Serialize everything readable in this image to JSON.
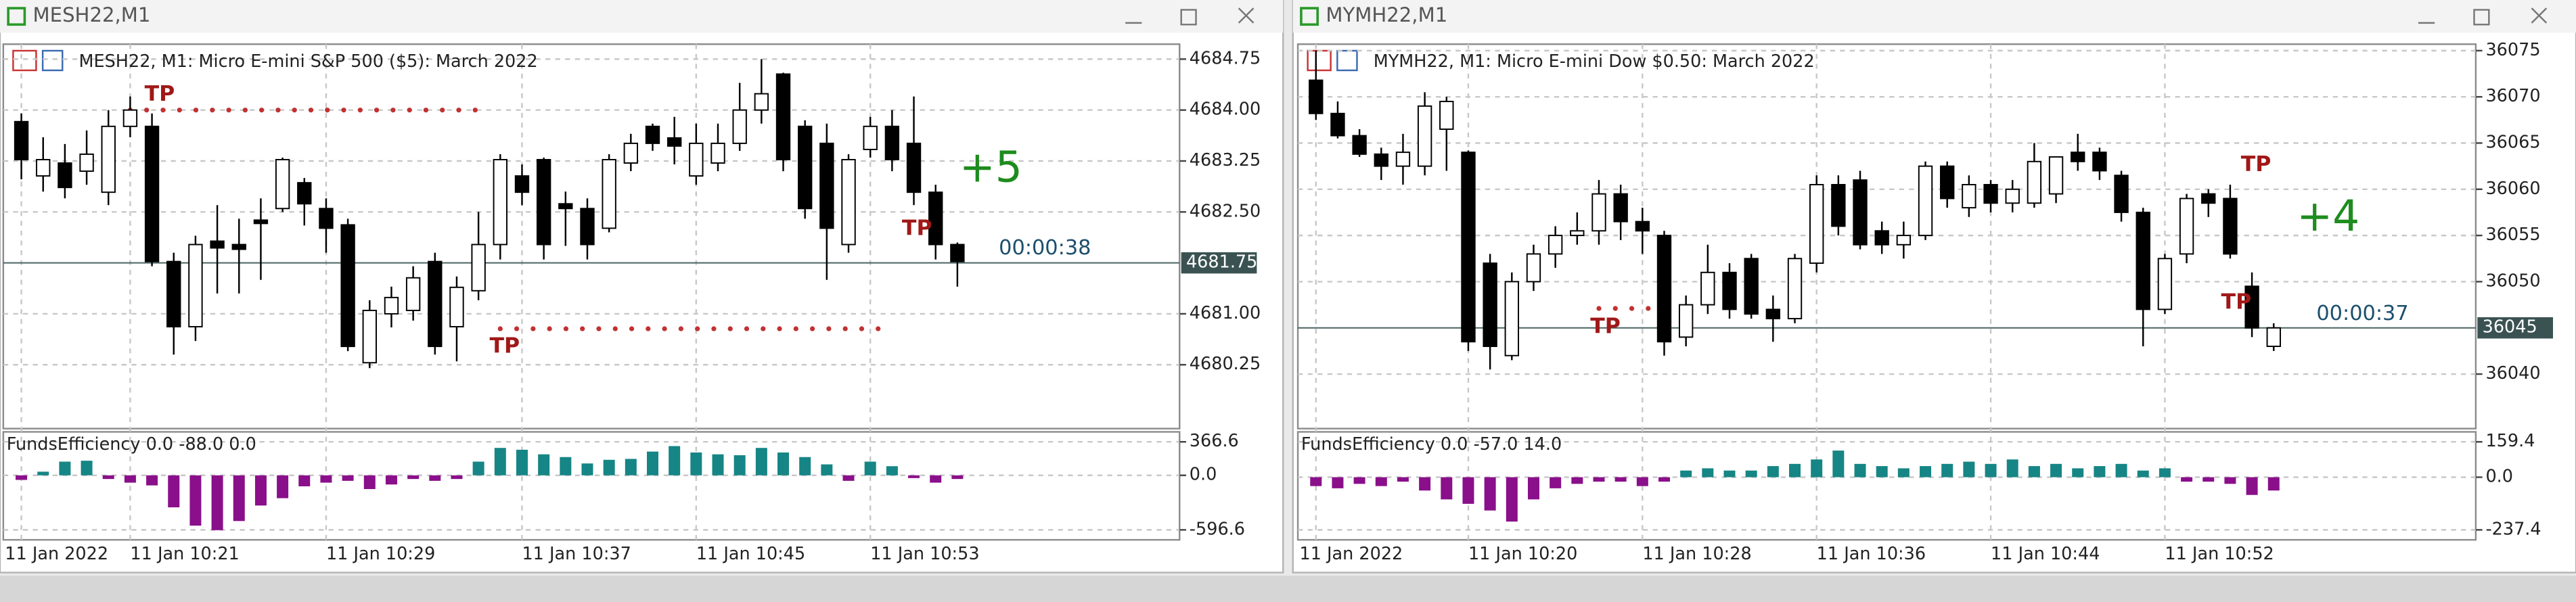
{
  "windows": [
    {
      "title": "MESH22,M1",
      "chart": {
        "type": "candlestick",
        "header": "MESH22, M1:  Micro E-mini S&P 500 ($5): March 2022",
        "categories": [
          "11 Jan 2022",
          null,
          null,
          null,
          null,
          "11 Jan 10:21",
          null,
          null,
          null,
          null,
          null,
          null,
          null,
          null,
          "11 Jan 10:29",
          null,
          null,
          null,
          null,
          null,
          null,
          null,
          null,
          "11 Jan 10:37",
          null,
          null,
          null,
          null,
          null,
          null,
          null,
          "11 Jan 10:45",
          null,
          null,
          null,
          null,
          null,
          null,
          null,
          "11 Jan 10:53",
          null,
          null,
          null,
          null
        ],
        "open": [
          4683.83,
          4683.03,
          4683.22,
          4683.1,
          4682.79,
          4683.76,
          4683.76,
          4681.77,
          4680.81,
          4682.07,
          4682.02,
          4682.38,
          4682.55,
          4682.93,
          4682.55,
          4682.31,
          4680.28,
          4681.0,
          4681.05,
          4681.77,
          4680.81,
          4681.34,
          4682.02,
          4683.03,
          4683.27,
          4682.62,
          4682.55,
          4682.26,
          4683.22,
          4683.76,
          4683.59,
          4683.03,
          4683.22,
          4683.51,
          4684.0,
          4684.53,
          4683.76,
          4683.51,
          4682.02,
          4683.42,
          4683.76,
          4683.51,
          4682.79,
          4682.02
        ],
        "high": [
          4683.95,
          4683.6,
          4683.5,
          4683.7,
          4684.0,
          4684.2,
          4683.95,
          4681.9,
          4682.15,
          4682.6,
          4682.4,
          4682.7,
          4683.3,
          4683.0,
          4682.7,
          4682.4,
          4681.2,
          4681.4,
          4681.7,
          4681.9,
          4681.55,
          4682.5,
          4683.35,
          4683.2,
          4683.3,
          4682.8,
          4682.7,
          4683.35,
          4683.65,
          4683.8,
          4683.9,
          4683.8,
          4683.8,
          4684.4,
          4684.75,
          4684.55,
          4683.85,
          4683.8,
          4683.35,
          4683.9,
          4684.0,
          4684.2,
          4682.9,
          4682.05
        ],
        "low": [
          4682.98,
          4682.8,
          4682.7,
          4682.9,
          4682.6,
          4683.6,
          4681.7,
          4680.4,
          4680.6,
          4681.3,
          4681.3,
          4681.5,
          4682.5,
          4682.3,
          4681.9,
          4680.45,
          4680.2,
          4680.8,
          4680.9,
          4680.4,
          4680.3,
          4681.2,
          4681.8,
          4682.6,
          4681.8,
          4682.0,
          4681.8,
          4682.2,
          4683.1,
          4683.4,
          4683.2,
          4682.9,
          4683.1,
          4683.4,
          4683.8,
          4683.1,
          4682.4,
          4681.5,
          4681.9,
          4683.3,
          4683.1,
          4682.6,
          4681.8,
          4681.4
        ],
        "close": [
          4683.27,
          4683.27,
          4682.86,
          4683.35,
          4683.76,
          4684.0,
          4681.77,
          4680.81,
          4682.02,
          4681.97,
          4681.95,
          4682.33,
          4683.27,
          4682.62,
          4682.26,
          4680.52,
          4681.05,
          4681.24,
          4681.53,
          4680.52,
          4681.39,
          4682.02,
          4683.27,
          4682.79,
          4682.02,
          4682.55,
          4682.02,
          4683.27,
          4683.51,
          4683.51,
          4683.47,
          4683.51,
          4683.51,
          4684.0,
          4684.24,
          4683.27,
          4682.55,
          4682.26,
          4683.27,
          4683.76,
          4683.27,
          4682.79,
          4682.02,
          4681.77
        ],
        "up_color": "#ffffff",
        "down_color": "#000000",
        "ylim": [
          4679.31,
          4684.97
        ],
        "yticks": [
          4684.75,
          {
            "value": 4684.0,
            "label": "4684.00"
          },
          4683.25,
          {
            "value": 4682.5,
            "label": "4682.50"
          },
          {
            "value": 4681.0,
            "label": "4681.00"
          },
          4680.25
        ],
        "price_line": 4681.75,
        "levels": [
          {
            "price": 4684.0,
            "from": 5,
            "to": 21
          },
          {
            "price": 4680.78,
            "from": 22,
            "to": 40
          }
        ],
        "annotations": [
          {
            "text": "+5",
            "color": "#1e8c1e"
          },
          {
            "text": "00:00:38",
            "color": "#1d4f6e"
          }
        ],
        "tp_labels": [
          "TP",
          "TP",
          "TP"
        ]
      },
      "indicator": {
        "type": "bar",
        "label": "FundsEfficiency 0.0 -88.0 0.0",
        "values": [
          -50,
          40,
          150,
          160,
          -40,
          -80,
          -110,
          -350,
          -550,
          -600,
          -500,
          -330,
          -250,
          -120,
          -80,
          -60,
          -150,
          -100,
          -40,
          -60,
          -40,
          150,
          300,
          280,
          230,
          200,
          130,
          170,
          180,
          260,
          320,
          250,
          230,
          220,
          300,
          250,
          200,
          120,
          -60,
          150,
          100,
          -30,
          -80,
          -40
        ],
        "positive_color": "#168585",
        "negative_color": "#8a0f8a",
        "ylim": [
          -705.6,
          475.6
        ],
        "yticks": [
          366.6,
          {
            "value": 0,
            "label": "0.0"
          },
          -596.6
        ]
      }
    },
    {
      "title": "MYMH22,M1",
      "chart": {
        "type": "candlestick",
        "header": "MYMH22, M1:  Micro E-mini Dow $0.50: March 2022",
        "categories": [
          "11 Jan 2022",
          null,
          null,
          null,
          null,
          null,
          null,
          "11 Jan 10:20",
          null,
          null,
          null,
          null,
          null,
          null,
          null,
          "11 Jan 10:28",
          null,
          null,
          null,
          null,
          null,
          null,
          null,
          "11 Jan 10:36",
          null,
          null,
          null,
          null,
          null,
          null,
          null,
          "11 Jan 10:44",
          null,
          null,
          null,
          null,
          null,
          null,
          null,
          "11 Jan 10:52",
          null,
          null,
          null,
          null,
          null
        ],
        "open": [
          36071.8,
          36068.2,
          36065.8,
          36063.8,
          36062.5,
          36062.5,
          36066.5,
          36064.0,
          36052.0,
          36042.0,
          36050.0,
          36053.0,
          36055.0,
          36055.5,
          36059.5,
          36056.5,
          36055.0,
          36044.0,
          36047.5,
          36051.0,
          36052.5,
          36047.0,
          36046.0,
          36052.0,
          36060.5,
          36061.0,
          36055.5,
          36054.0,
          36055.0,
          36062.5,
          36058.0,
          36060.5,
          36058.5,
          36058.5,
          36059.5,
          36064.0,
          36064.0,
          36061.5,
          36057.5,
          36047.0,
          36053.0,
          36059.5,
          36059.0,
          36049.5,
          36043.0
        ],
        "high": [
          36075.0,
          36069.5,
          36066.5,
          36064.5,
          36066.0,
          36070.5,
          36070.0,
          36064.2,
          36053.0,
          36051.0,
          36054.0,
          36056.0,
          36057.5,
          36061.0,
          36060.5,
          36058.0,
          36055.5,
          36048.5,
          36054.0,
          36052.0,
          36053.0,
          36048.5,
          36053.0,
          36061.5,
          36061.5,
          36062.0,
          36056.5,
          36056.5,
          36063.0,
          36063.0,
          36061.5,
          36061.0,
          36061.0,
          36065.0,
          36063.5,
          36066.0,
          36064.5,
          36062.0,
          36058.0,
          36053.0,
          36059.5,
          36060.0,
          36060.5,
          36051.0,
          36045.5
        ],
        "low": [
          36067.5,
          36065.5,
          36063.5,
          36061.0,
          36060.5,
          36061.5,
          36062.0,
          36042.5,
          36040.5,
          36041.5,
          36049.0,
          36051.5,
          36054.0,
          36054.0,
          36054.5,
          36053.0,
          36042.0,
          36043.0,
          36046.5,
          36046.0,
          36046.0,
          36043.5,
          36045.5,
          36051.0,
          36055.0,
          36053.5,
          36053.0,
          36052.5,
          36054.5,
          36058.0,
          36057.0,
          36057.5,
          36057.5,
          36058.0,
          36058.5,
          36062.0,
          36061.0,
          36056.5,
          36043.0,
          36046.5,
          36052.0,
          36057.0,
          36052.5,
          36044.0,
          36042.5
        ],
        "close": [
          36068.2,
          36065.8,
          36063.8,
          36062.5,
          36064.0,
          36069.0,
          36069.5,
          36043.5,
          36043.0,
          36050.0,
          36053.0,
          36055.0,
          36055.5,
          36059.5,
          36056.5,
          36055.5,
          36043.5,
          36047.5,
          36051.0,
          36047.0,
          36046.5,
          36046.0,
          36052.5,
          36060.5,
          36056.0,
          36054.0,
          36054.0,
          36055.0,
          36062.5,
          36059.0,
          36060.5,
          36058.5,
          36060.0,
          36063.0,
          36063.5,
          36063.0,
          36062.0,
          36057.5,
          36047.0,
          36052.5,
          36059.0,
          36058.5,
          36053.0,
          36045.0,
          36045.0
        ],
        "up_color": "#ffffff",
        "down_color": "#000000",
        "ylim": [
          36034.1,
          36075.7
        ],
        "yticks": [
          36075,
          36070,
          36065,
          36060,
          36055,
          36050,
          36040
        ],
        "price_line": 36045,
        "levels": [
          {
            "price": 36047.1,
            "from": 13,
            "to": 16
          }
        ],
        "annotations": [
          {
            "text": "+4",
            "color": "#1e8c1e"
          },
          {
            "text": "00:00:37",
            "color": "#1d4f6e"
          }
        ],
        "tp_labels": [
          "TP",
          "TP",
          "TP"
        ]
      },
      "indicator": {
        "type": "bar",
        "label": "FundsEfficiency 0.0 -57.0 14.0",
        "values": [
          -40,
          -50,
          -30,
          -40,
          -20,
          -60,
          -100,
          -120,
          -150,
          -200,
          -100,
          -50,
          -30,
          -20,
          -20,
          -40,
          -20,
          30,
          40,
          30,
          30,
          50,
          60,
          80,
          120,
          60,
          50,
          40,
          50,
          60,
          70,
          60,
          80,
          50,
          60,
          40,
          50,
          60,
          30,
          40,
          -20,
          -20,
          -30,
          -80,
          -60
        ],
        "positive_color": "#168585",
        "negative_color": "#8a0f8a",
        "ylim": [
          -282.3,
          204.3
        ],
        "yticks": [
          159.4,
          {
            "value": 0,
            "label": "0.0"
          },
          -237.4
        ]
      }
    }
  ]
}
